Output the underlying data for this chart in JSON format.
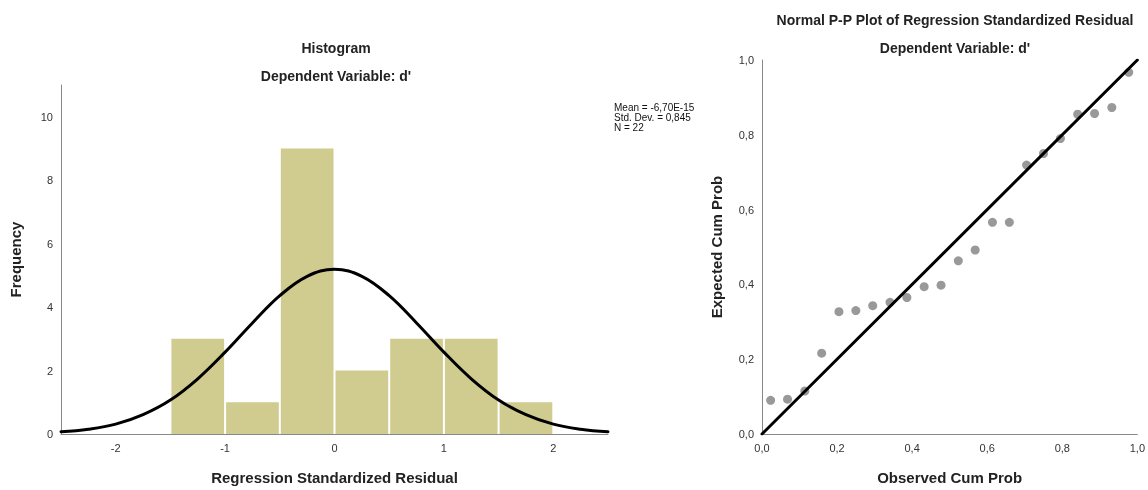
{
  "chart_data": [
    {
      "type": "histogram",
      "title": "Histogram",
      "subtitle": "Dependent Variable: d'",
      "xlabel": "Regression Standardized Residual",
      "ylabel": "Frequency",
      "bins": [
        -1.5,
        -1,
        -0.5,
        0,
        0.5,
        1,
        1.5,
        2
      ],
      "values": [
        3,
        1,
        9,
        2,
        3,
        3,
        1
      ],
      "color": "#d0cb8f",
      "xlim": [
        -2.5,
        2.5
      ],
      "xticks": [
        -2,
        -1,
        0,
        1,
        2
      ],
      "ylim": [
        0,
        11
      ],
      "yticks": [
        0,
        2,
        4,
        6,
        8,
        10
      ],
      "grid": false,
      "annotations": [
        "Mean = -6,70E-15",
        "Std. Dev. = 0,845",
        "N = 22"
      ],
      "series": [
        {
          "type": "line",
          "color": "#000000",
          "x": [
            -2.5,
            -2.25,
            -2,
            -1.75,
            -1.5,
            -1.25,
            -1,
            -0.75,
            -0.5,
            -0.25,
            0,
            0.25,
            0.5,
            0.75,
            1,
            1.25,
            1.5,
            1.75,
            2,
            2.25,
            2.5
          ],
          "values": [
            0.07,
            0.15,
            0.31,
            0.61,
            1.07,
            1.74,
            2.58,
            3.5,
            4.36,
            4.97,
            5.19,
            4.97,
            4.36,
            3.5,
            2.58,
            1.74,
            1.07,
            0.61,
            0.31,
            0.15,
            0.07
          ]
        }
      ]
    },
    {
      "type": "scatter",
      "title": "Normal P-P Plot of Regression Standardized Residual",
      "subtitle": "Dependent Variable: d'",
      "xlabel": "Observed Cum Prob",
      "ylabel": "Expected Cum Prob",
      "xlim": [
        0,
        1
      ],
      "ylim": [
        0,
        1
      ],
      "xticks": [
        {
          "value": 0,
          "label": "0,0"
        },
        {
          "value": 0.2,
          "label": "0,2"
        },
        {
          "value": 0.4,
          "label": "0,4"
        },
        {
          "value": 0.6,
          "label": "0,6"
        },
        {
          "value": 0.8,
          "label": "0,8"
        },
        {
          "value": 1,
          "label": "1,0"
        }
      ],
      "yticks": [
        {
          "value": 0,
          "label": "0,0"
        },
        {
          "value": 0.2,
          "label": "0,2"
        },
        {
          "value": 0.4,
          "label": "0,4"
        },
        {
          "value": 0.6,
          "label": "0,6"
        },
        {
          "value": 0.8,
          "label": "0,8"
        },
        {
          "value": 1,
          "label": "1,0"
        }
      ],
      "grid": false,
      "series": [
        {
          "type": "scatter",
          "marker": "circle",
          "color": "#808080",
          "x": [
            0.023,
            0.068,
            0.114,
            0.159,
            0.205,
            0.25,
            0.295,
            0.341,
            0.386,
            0.432,
            0.477,
            0.523,
            0.568,
            0.614,
            0.659,
            0.705,
            0.75,
            0.795,
            0.841,
            0.886,
            0.932,
            0.977
          ],
          "values": [
            0.09,
            0.093,
            0.115,
            0.216,
            0.327,
            0.33,
            0.343,
            0.352,
            0.365,
            0.394,
            0.398,
            0.463,
            0.492,
            0.566,
            0.566,
            0.719,
            0.75,
            0.79,
            0.855,
            0.857,
            0.873,
            0.967
          ]
        },
        {
          "type": "line",
          "color": "#000000",
          "x": [
            0,
            1
          ],
          "values": [
            0,
            1
          ]
        }
      ]
    }
  ]
}
